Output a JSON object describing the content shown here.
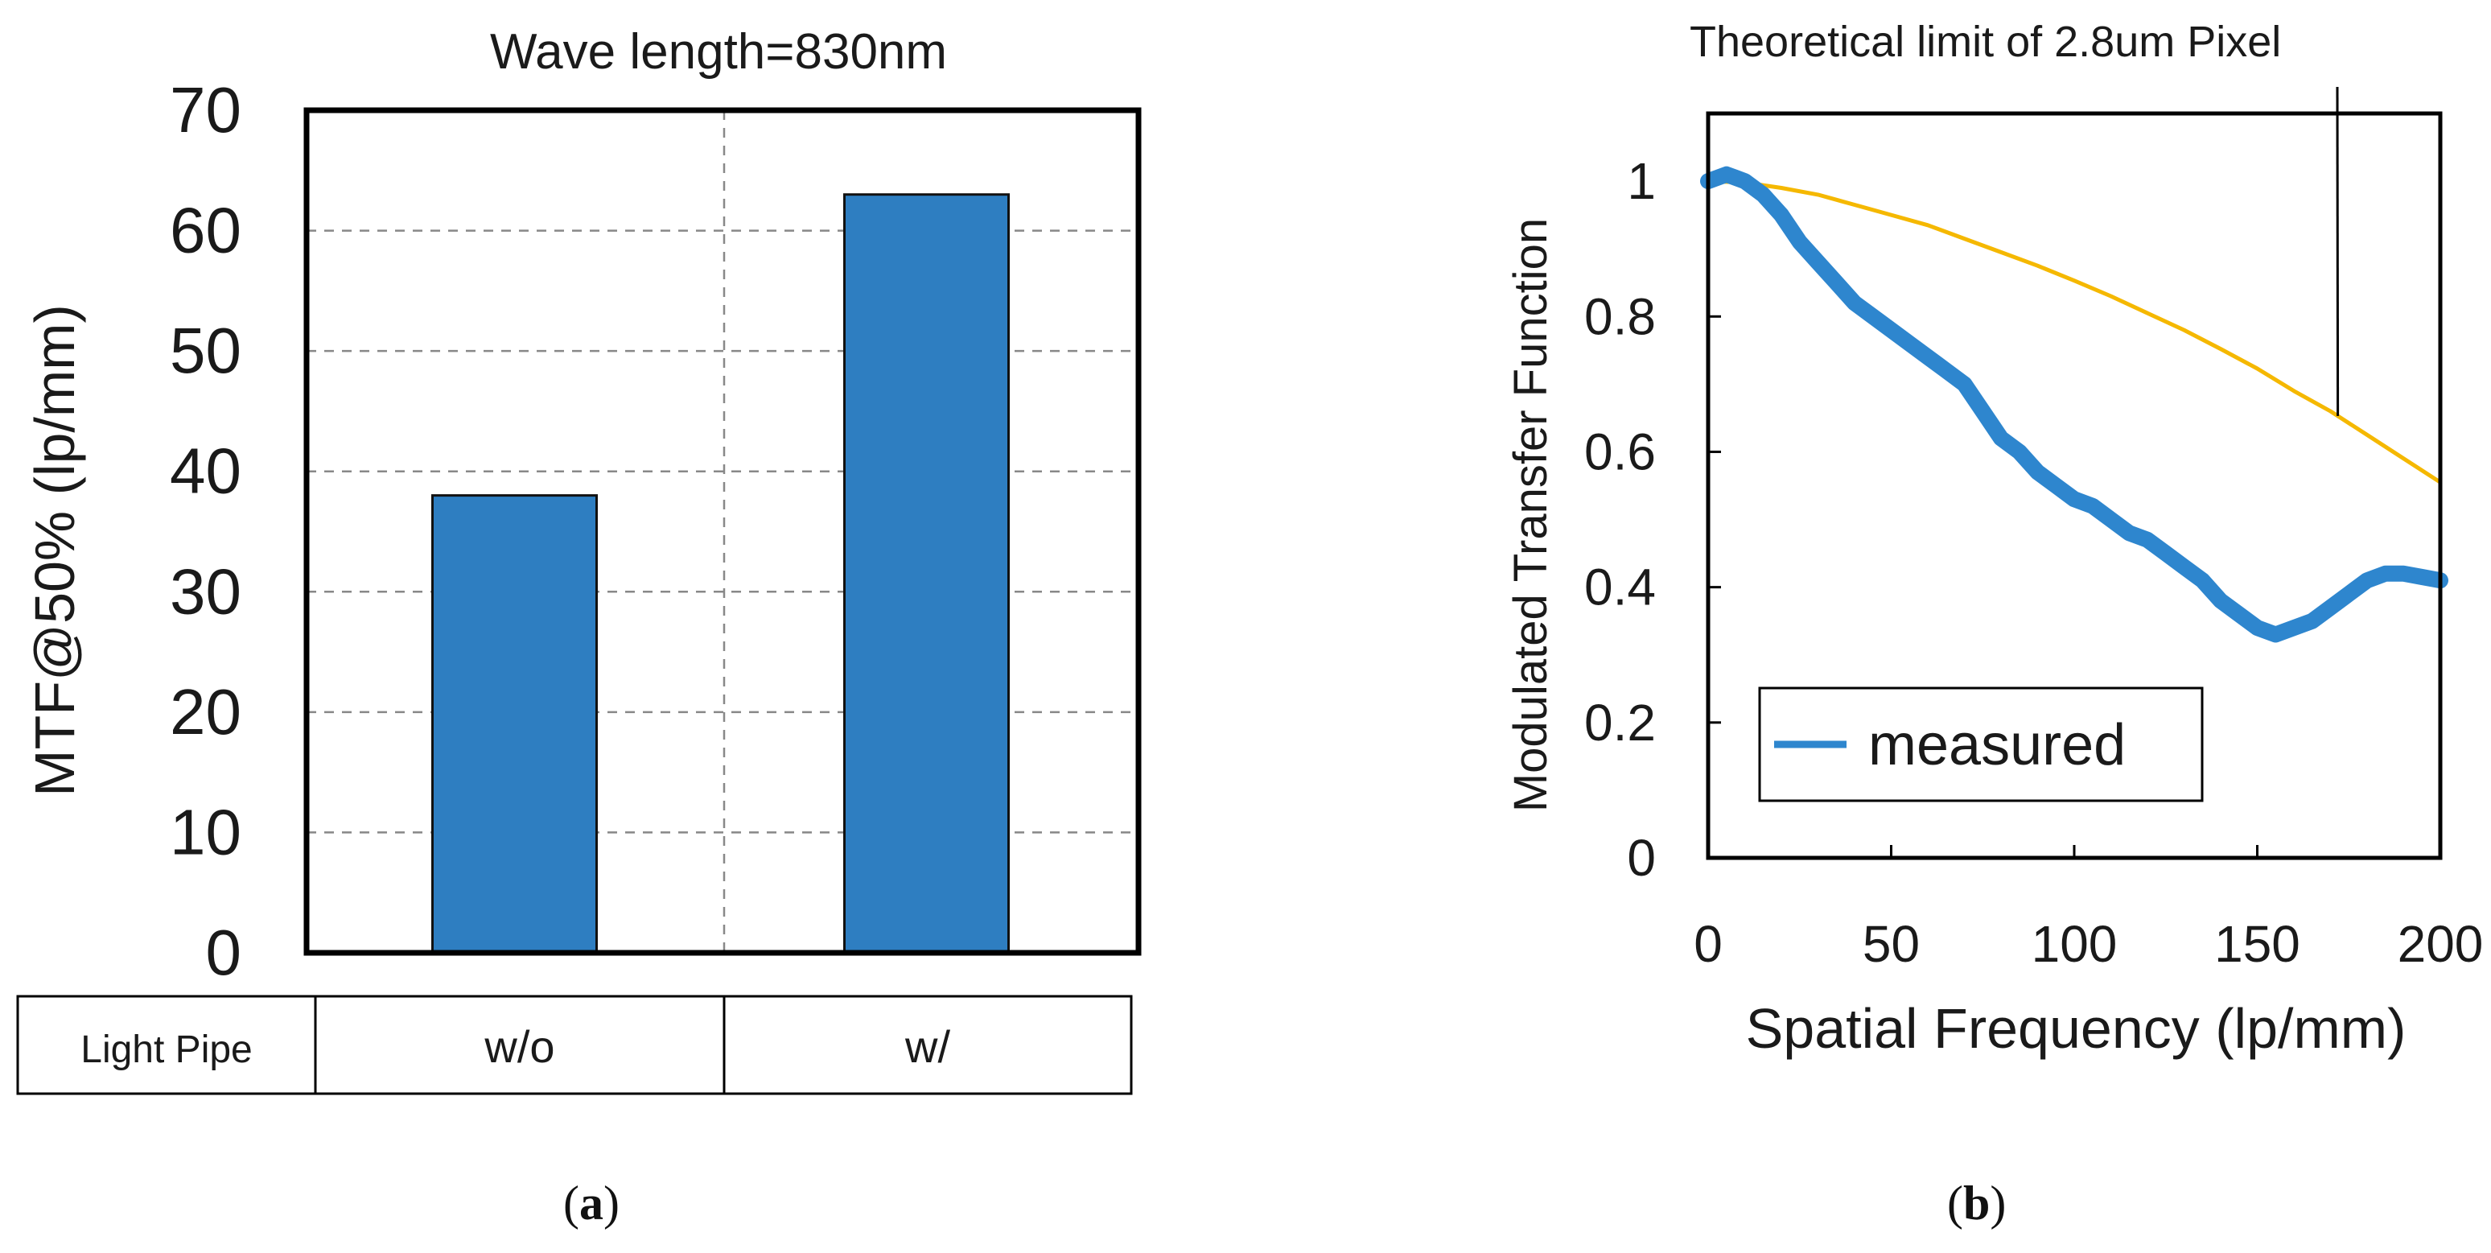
{
  "chart_data": [
    {
      "type": "bar",
      "panel_label": "a",
      "title": "Wave length=830nm",
      "ylabel": "MTF@50% (lp/mm)",
      "ylim": [
        0,
        70
      ],
      "yticks": [
        0,
        10,
        20,
        30,
        40,
        50,
        60,
        70
      ],
      "grid": true,
      "table_header": "Light Pipe",
      "categories": [
        "w/o",
        "w/"
      ],
      "values": [
        38,
        63
      ],
      "color": "#2E7EC1"
    },
    {
      "type": "line",
      "panel_label": "b",
      "xlabel": "Spatial Frequency (lp/mm)",
      "ylabel": "Modulated Transfer Function",
      "xlim": [
        0,
        200
      ],
      "ylim": [
        0,
        1.1
      ],
      "xticks": [
        0,
        50,
        100,
        150,
        200
      ],
      "yticks": [
        0,
        0.2,
        0.4,
        0.6,
        0.8,
        1
      ],
      "ytick_labels": [
        "0",
        "0.2",
        "0.4",
        "0.6",
        "0.8",
        "1"
      ],
      "annotation": "Theoretical limit of 2.8um Pixel",
      "legend_position": "bottom-left",
      "series": [
        {
          "name": "measured",
          "color": "#2E86CE",
          "x": [
            0,
            5,
            10,
            15,
            20,
            25,
            30,
            35,
            40,
            45,
            50,
            55,
            60,
            65,
            70,
            75,
            80,
            85,
            90,
            95,
            100,
            105,
            110,
            115,
            120,
            125,
            130,
            135,
            140,
            145,
            150,
            155,
            160,
            165,
            170,
            175,
            180,
            185,
            190,
            195,
            200
          ],
          "y": [
            1.0,
            1.01,
            1.0,
            0.98,
            0.95,
            0.91,
            0.88,
            0.85,
            0.82,
            0.8,
            0.78,
            0.76,
            0.74,
            0.72,
            0.7,
            0.66,
            0.62,
            0.6,
            0.57,
            0.55,
            0.53,
            0.52,
            0.5,
            0.48,
            0.47,
            0.45,
            0.43,
            0.41,
            0.38,
            0.36,
            0.34,
            0.33,
            0.34,
            0.35,
            0.37,
            0.39,
            0.41,
            0.42,
            0.42,
            0.415,
            0.41
          ]
        },
        {
          "name": "Theoretical limit of 2.8um Pixel",
          "color": "#F5B800",
          "x": [
            0,
            10,
            20,
            30,
            40,
            50,
            60,
            70,
            80,
            90,
            100,
            110,
            120,
            130,
            140,
            150,
            160,
            170,
            180,
            190,
            200
          ],
          "y": [
            1.0,
            0.998,
            0.99,
            0.98,
            0.965,
            0.95,
            0.935,
            0.915,
            0.895,
            0.875,
            0.853,
            0.83,
            0.805,
            0.78,
            0.752,
            0.723,
            0.69,
            0.66,
            0.625,
            0.59,
            0.555
          ]
        }
      ]
    }
  ]
}
